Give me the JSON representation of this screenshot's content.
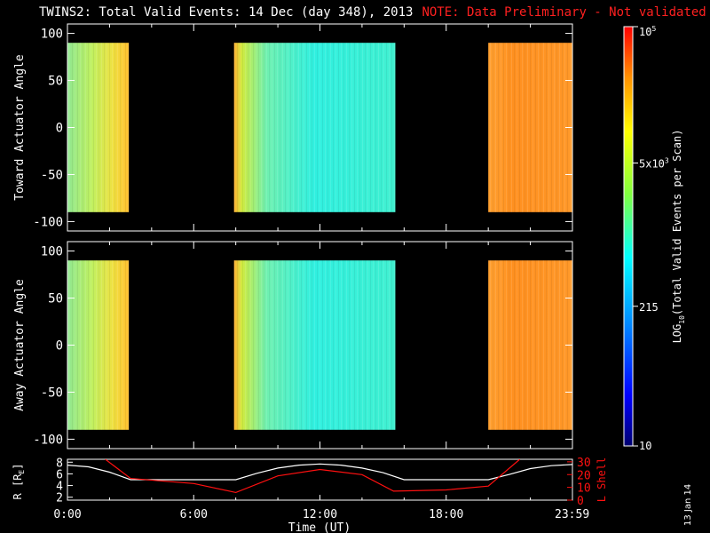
{
  "title": "TWINS2: Total Valid Events: 14 Dec (day 348), 2013",
  "note": "NOTE: Data Preliminary - Not validated",
  "datestamp": "13 Jan 14",
  "colors": {
    "background": "#000000",
    "foreground": "#ffffff",
    "note": "#ff2020",
    "lshell": "#ff1010",
    "radius": "#ffffff"
  },
  "chart_data": [
    {
      "type": "heatmap",
      "panel": "toward",
      "ylabel": "Toward Actuator Angle",
      "ylim": [
        -110,
        110
      ],
      "yticks": [
        100,
        50,
        0,
        -50,
        -100
      ],
      "xlim_hours": [
        0,
        24
      ],
      "angle_range": [
        -90,
        90
      ],
      "data_intervals": [
        {
          "start": "0:00",
          "end": "2:55",
          "level": "yellow-green to yellow-orange"
        },
        {
          "start": "7:55",
          "end": "15:35",
          "level": "cyan to light green"
        },
        {
          "start": "20:00",
          "end": "23:59",
          "level": "orange"
        }
      ]
    },
    {
      "type": "heatmap",
      "panel": "away",
      "ylabel": "Away Actuator Angle",
      "ylim": [
        -110,
        110
      ],
      "yticks": [
        100,
        50,
        0,
        -50,
        -100
      ],
      "xlim_hours": [
        0,
        24
      ],
      "angle_range": [
        -90,
        90
      ],
      "data_intervals": [
        {
          "start": "0:00",
          "end": "2:55",
          "level": "yellow-green to yellow-orange"
        },
        {
          "start": "7:55",
          "end": "15:35",
          "level": "cyan to light green"
        },
        {
          "start": "20:00",
          "end": "23:59",
          "level": "orange"
        }
      ]
    },
    {
      "type": "line",
      "panel": "ephemeris",
      "xlabel": "Time (UT)",
      "xticks": [
        "0:00",
        "6:00",
        "12:00",
        "18:00",
        "23:59"
      ],
      "ylabel_left": "R [RE]",
      "ylabel_left_sub": "E",
      "ylabel_left_pre": "R [R",
      "ylabel_left_post": "]",
      "yticks_left": [
        "8",
        "6",
        "4",
        "2"
      ],
      "ylim_left": [
        1.5,
        8.5
      ],
      "ylabel_right": "L Shell",
      "yticks_right": [
        "30",
        "20",
        "10",
        "0"
      ],
      "ylim_right": [
        0,
        32
      ],
      "series": [
        {
          "name": "R [RE]",
          "axis": "left",
          "x": [
            0,
            1,
            2,
            3,
            4,
            5,
            6,
            7,
            8,
            9,
            10,
            11,
            12,
            13,
            14,
            15,
            16,
            17,
            18,
            19,
            20,
            21,
            22,
            23,
            24
          ],
          "y": [
            7.5,
            7.2,
            6.3,
            5.0,
            5.0,
            5.0,
            5.0,
            5.0,
            5.0,
            6.1,
            7.0,
            7.5,
            7.7,
            7.5,
            7.0,
            6.2,
            5.0,
            5.0,
            5.0,
            5.0,
            5.0,
            5.9,
            6.9,
            7.4,
            7.6
          ]
        },
        {
          "name": "L Shell",
          "axis": "right",
          "x": [
            1.8,
            3.0,
            6.0,
            8.0,
            10.0,
            12.0,
            14.0,
            15.5,
            18.0,
            20.0,
            21.5
          ],
          "y": [
            32,
            17,
            13,
            6,
            19,
            24,
            20,
            7,
            8,
            11,
            32
          ]
        }
      ]
    },
    {
      "type": "colorbar",
      "label": "LOG10(Total Valid Events per Scan)",
      "label_pre": "LOG",
      "label_sub": "10",
      "label_post": "(Total Valid Events per Scan)",
      "log_range": [
        10,
        100000
      ],
      "ticks": [
        {
          "value": 10,
          "text": "10"
        },
        {
          "value": 215,
          "text": "215"
        },
        {
          "value": 5000,
          "base": "5x10",
          "exp": "3"
        },
        {
          "value": 100000,
          "base": "10",
          "exp": "5"
        }
      ]
    }
  ]
}
